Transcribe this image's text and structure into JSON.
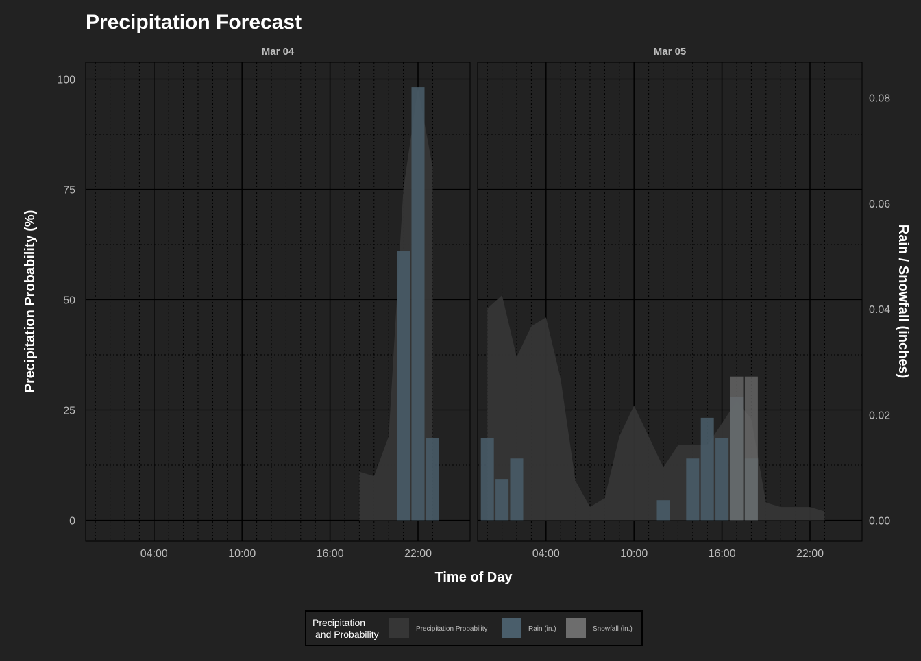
{
  "colors": {
    "background": "#222222",
    "panel_border": "#000000",
    "probability": "#363636",
    "rain": "#4a5e6b",
    "snow": "#6d6d6d",
    "text": "#ffffff",
    "tick_text": "#bdbdbd"
  },
  "chart_data": {
    "type": "bar",
    "title": "Precipitation Forecast",
    "xlabel": "Time of Day",
    "ylabel_left": "Precipitation Probability (%)",
    "ylabel_right": "Rain / Snowfall (inches)",
    "ylim_left": [
      0,
      100
    ],
    "ylim_right": [
      0,
      0.083
    ],
    "grid": true,
    "legend_position": "bottom",
    "legend": {
      "title_line1": "Precipitation",
      "title_line2": "and Probability",
      "items": [
        "Precipitation Probability",
        "Rain (in.)",
        "Snowfall (in.)"
      ]
    },
    "x_ticks": [
      "04:00",
      "10:00",
      "16:00",
      "22:00"
    ],
    "y_ticks_left": [
      "0",
      "25",
      "50",
      "75",
      "100"
    ],
    "y_ticks_right": [
      "0.00",
      "0.02",
      "0.04",
      "0.06",
      "0.08"
    ],
    "panels": [
      {
        "label": "Mar 04",
        "probability": [
          {
            "hour": 18,
            "value": 11
          },
          {
            "hour": 19,
            "value": 10
          },
          {
            "hour": 20,
            "value": 19
          },
          {
            "hour": 21,
            "value": 75
          },
          {
            "hour": 22,
            "value": 98
          },
          {
            "hour": 23,
            "value": 80
          }
        ],
        "rain": [
          {
            "hour": 21,
            "value": 0.051
          },
          {
            "hour": 22,
            "value": 0.082
          },
          {
            "hour": 23,
            "value": 0.0155
          }
        ],
        "snow": []
      },
      {
        "label": "Mar 05",
        "probability": [
          {
            "hour": 0,
            "value": 48
          },
          {
            "hour": 1,
            "value": 51
          },
          {
            "hour": 2,
            "value": 37
          },
          {
            "hour": 3,
            "value": 44
          },
          {
            "hour": 4,
            "value": 46
          },
          {
            "hour": 5,
            "value": 32
          },
          {
            "hour": 6,
            "value": 9
          },
          {
            "hour": 7,
            "value": 3
          },
          {
            "hour": 8,
            "value": 5
          },
          {
            "hour": 9,
            "value": 19
          },
          {
            "hour": 10,
            "value": 26
          },
          {
            "hour": 11,
            "value": 19
          },
          {
            "hour": 12,
            "value": 12
          },
          {
            "hour": 13,
            "value": 17
          },
          {
            "hour": 14,
            "value": 17
          },
          {
            "hour": 15,
            "value": 17
          },
          {
            "hour": 16,
            "value": 22
          },
          {
            "hour": 17,
            "value": 27
          },
          {
            "hour": 18,
            "value": 23
          },
          {
            "hour": 19,
            "value": 4
          },
          {
            "hour": 20,
            "value": 3
          },
          {
            "hour": 21,
            "value": 3
          },
          {
            "hour": 22,
            "value": 3
          },
          {
            "hour": 23,
            "value": 2
          }
        ],
        "rain": [
          {
            "hour": 0,
            "value": 0.0155
          },
          {
            "hour": 1,
            "value": 0.0077
          },
          {
            "hour": 2,
            "value": 0.0117
          },
          {
            "hour": 12,
            "value": 0.0038
          },
          {
            "hour": 14,
            "value": 0.0117
          },
          {
            "hour": 15,
            "value": 0.0194
          },
          {
            "hour": 16,
            "value": 0.0155
          },
          {
            "hour": 17,
            "value": 0.0233
          },
          {
            "hour": 18,
            "value": 0.0117
          }
        ],
        "snow": [
          {
            "hour": 17,
            "value": 0.0272
          },
          {
            "hour": 18,
            "value": 0.0272
          }
        ]
      }
    ]
  }
}
